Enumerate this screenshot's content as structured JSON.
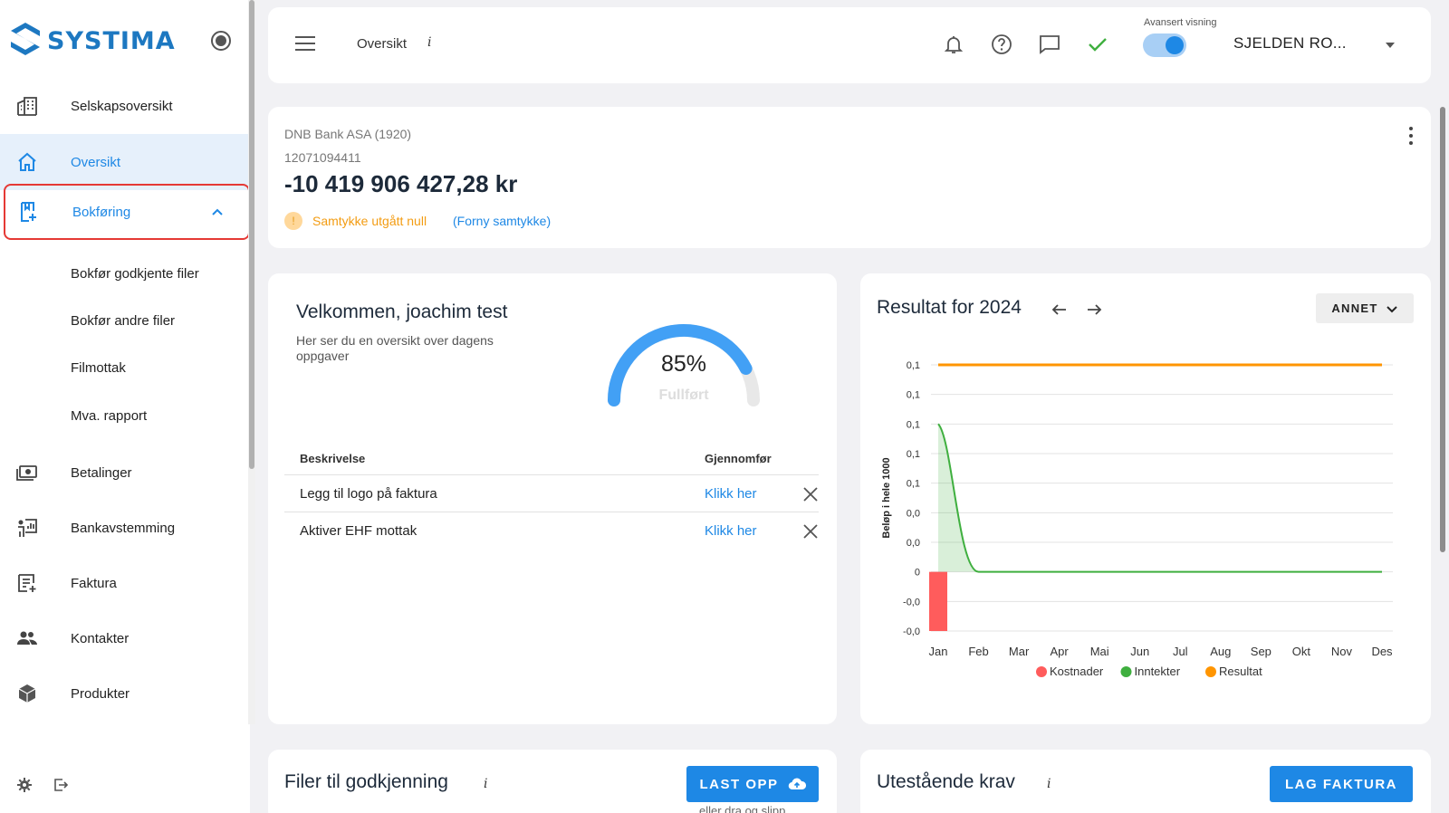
{
  "app": {
    "logo_text": "SYSTIMA"
  },
  "sidebar": {
    "items": [
      {
        "label": "Selskapsoversikt",
        "icon": "office-building-icon"
      },
      {
        "label": "Oversikt",
        "icon": "home-icon"
      },
      {
        "label": "Bokføring",
        "icon": "bookkeeping-icon"
      },
      {
        "label": "Betalinger",
        "icon": "money-icon"
      },
      {
        "label": "Bankavstemming",
        "icon": "bank-reconciliation-icon"
      },
      {
        "label": "Faktura",
        "icon": "invoice-icon"
      },
      {
        "label": "Kontakter",
        "icon": "people-icon"
      },
      {
        "label": "Produkter",
        "icon": "box-icon"
      }
    ],
    "sub_items": [
      "Bokfør godkjente filer",
      "Bokfør andre filer",
      "Filmottak",
      "Mva. rapport"
    ]
  },
  "topbar": {
    "title": "Oversikt",
    "info": "i",
    "advanced_label": "Avansert visning",
    "company": "SJELDEN RO..."
  },
  "bank": {
    "name": "DNB Bank ASA (1920)",
    "account": "12071094411",
    "balance": "-10 419 906 427,28 kr",
    "warning_mark": "!",
    "warning": "Samtykke utgått null",
    "renew": "(Forny samtykke)"
  },
  "welcome": {
    "title": "Velkommen, joachim test",
    "subtitle": "Her ser du en oversikt over dagens oppgaver",
    "progress_percent": 85,
    "progress_label": "85%",
    "progress_caption": "Fullført",
    "table": {
      "headers": [
        "Beskrivelse",
        "Gjennomfør"
      ],
      "rows": [
        {
          "desc": "Legg til logo på faktura",
          "action": "Klikk her"
        },
        {
          "desc": "Aktiver EHF mottak",
          "action": "Klikk her"
        }
      ]
    }
  },
  "chart_card": {
    "title": "Resultat for 2024",
    "filter": "ANNET"
  },
  "chart_data": {
    "type": "line",
    "ylabel": "Beløp i hele 1000",
    "categories": [
      "Jan",
      "Feb",
      "Mar",
      "Apr",
      "Mai",
      "Jun",
      "Jul",
      "Aug",
      "Sep",
      "Okt",
      "Nov",
      "Des"
    ],
    "y_ticks": [
      "0,1",
      "0,1",
      "0,1",
      "0,1",
      "0,1",
      "0,0",
      "0,0",
      "0",
      "-0,0",
      "-0,0"
    ],
    "ylim": [
      -0.2,
      0.7
    ],
    "series": [
      {
        "name": "Kostnader",
        "kind": "bar",
        "color": "#ff5c5c",
        "values": [
          -0.2,
          0,
          0,
          0,
          0,
          0,
          0,
          0,
          0,
          0,
          0,
          0
        ]
      },
      {
        "name": "Inntekter",
        "kind": "area",
        "color": "#3faf3f",
        "values": [
          0.5,
          0,
          0,
          0,
          0,
          0,
          0,
          0,
          0,
          0,
          0,
          0
        ]
      },
      {
        "name": "Resultat",
        "kind": "line",
        "color": "#ff9500",
        "values": [
          0.7,
          0.7,
          0.7,
          0.7,
          0.7,
          0.7,
          0.7,
          0.7,
          0.7,
          0.7,
          0.7,
          0.7
        ]
      }
    ],
    "legend": "bottom"
  },
  "files_card": {
    "title": "Filer til godkjenning",
    "info": "i",
    "upload": "LAST OPP",
    "drop_hint": "eller dra og slipp"
  },
  "claims_card": {
    "title": "Utestående krav",
    "info": "i",
    "create_invoice": "LAG FAKTURA"
  },
  "colors": {
    "accent": "#1e88e5",
    "warning": "#f39c12",
    "highlight_border": "#e53935"
  }
}
